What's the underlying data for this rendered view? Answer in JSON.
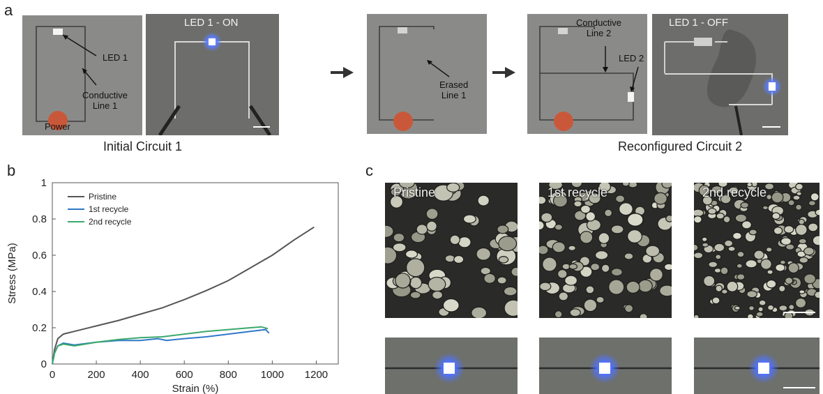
{
  "panel_a": {
    "letter": "a",
    "schematic1": {
      "led_label": "LED 1",
      "line_label_1": "Conductive",
      "line_label_2": "Line 1",
      "power_label": "Power"
    },
    "photo1": {
      "label": "LED 1 - ON"
    },
    "schematic2": {
      "label_1": "Erased",
      "label_2": "Line 1"
    },
    "schematic3": {
      "line_label_1": "Conductive",
      "line_label_2": "Line 2",
      "led_label": "LED 2"
    },
    "photo2": {
      "label": "LED 1 - OFF"
    },
    "caption_left": "Initial Circuit 1",
    "caption_right": "Reconfigured Circuit 2",
    "colors": {
      "schematic_bg": "#8a8b89",
      "power_dot": "#c9583b",
      "led_white": "#f4f4f4",
      "led_blue": "#5b7dff"
    }
  },
  "panel_b": {
    "letter": "b",
    "chart_data": {
      "type": "line",
      "xlabel": "Strain (%)",
      "ylabel": "Stress (MPa)",
      "xlim": [
        0,
        1300
      ],
      "ylim": [
        0,
        1
      ],
      "xticks": [
        0,
        200,
        400,
        600,
        800,
        1000,
        1200
      ],
      "yticks": [
        0,
        0.2,
        0.4,
        0.6,
        0.8,
        1
      ],
      "ytick_labels": [
        "0",
        "0.2",
        "0.4",
        "0.6",
        "0.8",
        "1"
      ],
      "legend_position": "top-left",
      "series": [
        {
          "name": "Pristine",
          "color": "#555555",
          "x": [
            0,
            10,
            25,
            50,
            100,
            200,
            300,
            400,
            500,
            600,
            700,
            800,
            900,
            1000,
            1100,
            1190
          ],
          "y": [
            0,
            0.08,
            0.14,
            0.165,
            0.18,
            0.21,
            0.24,
            0.275,
            0.31,
            0.355,
            0.405,
            0.46,
            0.53,
            0.6,
            0.685,
            0.755
          ]
        },
        {
          "name": "1st recycle",
          "color": "#2f78c8",
          "x": [
            0,
            10,
            25,
            50,
            100,
            200,
            300,
            400,
            480,
            520,
            600,
            700,
            800,
            900,
            970,
            985
          ],
          "y": [
            0,
            0.06,
            0.1,
            0.115,
            0.105,
            0.12,
            0.13,
            0.13,
            0.14,
            0.13,
            0.14,
            0.15,
            0.165,
            0.18,
            0.19,
            0.17
          ]
        },
        {
          "name": "2nd recycle",
          "color": "#3aa86b",
          "x": [
            0,
            10,
            25,
            50,
            100,
            200,
            300,
            400,
            500,
            600,
            700,
            800,
            900,
            950,
            980
          ],
          "y": [
            0,
            0.06,
            0.1,
            0.11,
            0.1,
            0.12,
            0.135,
            0.145,
            0.15,
            0.165,
            0.18,
            0.19,
            0.2,
            0.205,
            0.195
          ]
        }
      ]
    }
  },
  "panel_c": {
    "letter": "c",
    "images": [
      {
        "label": "Pristine"
      },
      {
        "label": "1st recycle"
      },
      {
        "label": "2nd recycle"
      }
    ]
  }
}
